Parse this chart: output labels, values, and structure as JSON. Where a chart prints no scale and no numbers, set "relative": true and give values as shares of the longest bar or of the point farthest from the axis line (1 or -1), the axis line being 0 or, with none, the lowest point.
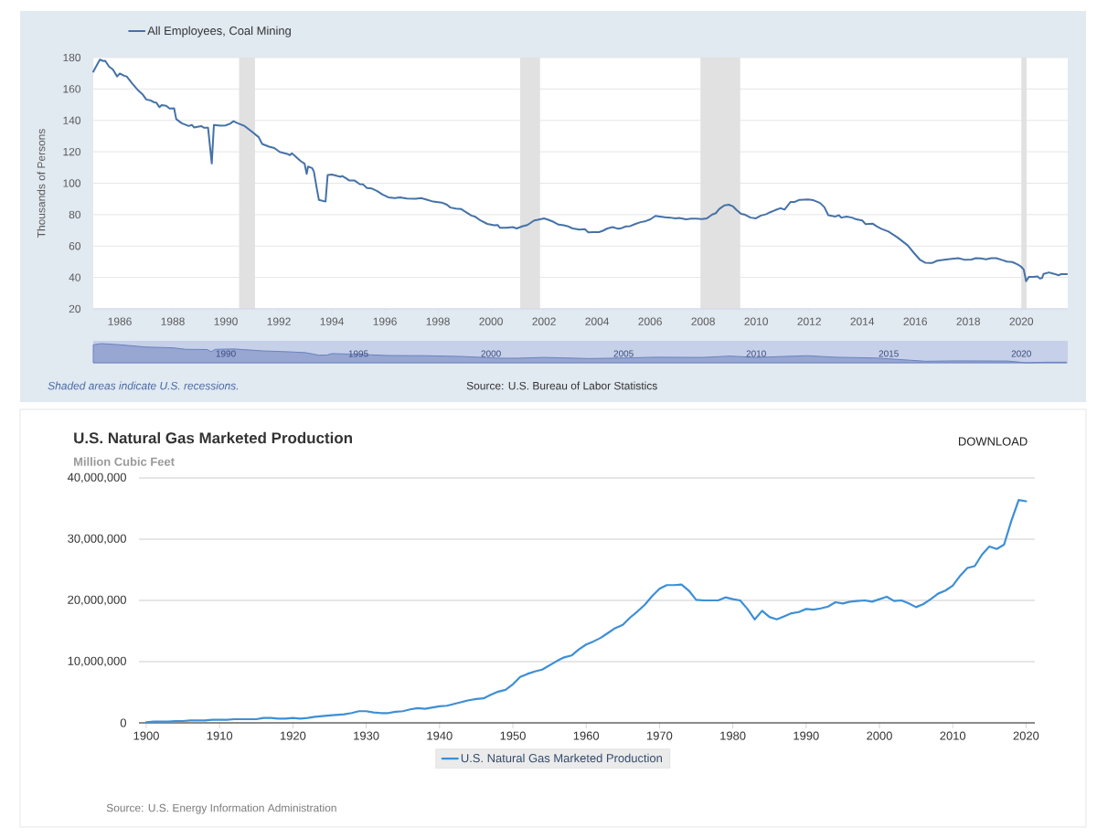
{
  "chart_data": [
    {
      "type": "line",
      "ylabel": "Thousands of Persons",
      "x": [
        1985.0,
        1985.25,
        1985.38,
        1985.45,
        1985.6,
        1985.74,
        1985.9,
        1986.0,
        1986.17,
        1986.26,
        1986.47,
        1986.7,
        1986.87,
        1987.0,
        1987.18,
        1987.29,
        1987.38,
        1987.5,
        1987.58,
        1987.75,
        1987.88,
        1988.05,
        1988.13,
        1988.34,
        1988.6,
        1988.72,
        1988.8,
        1989.07,
        1989.18,
        1989.33,
        1989.47,
        1989.55,
        1989.71,
        1989.82,
        1989.99,
        1990.16,
        1990.29,
        1990.45,
        1990.71,
        1990.97,
        1991.24,
        1991.37,
        1991.63,
        1991.83,
        1992.03,
        1992.29,
        1992.42,
        1992.49,
        1992.62,
        1992.82,
        1992.97,
        1993.05,
        1993.1,
        1993.25,
        1993.32,
        1993.41,
        1993.51,
        1993.76,
        1993.84,
        1994.0,
        1994.2,
        1994.33,
        1994.39,
        1994.55,
        1994.66,
        1994.86,
        1995.05,
        1995.18,
        1995.32,
        1995.51,
        1995.71,
        1995.91,
        1996.13,
        1996.37,
        1996.57,
        1996.83,
        1997.16,
        1997.36,
        1997.55,
        1997.82,
        1998.14,
        1998.34,
        1998.47,
        1998.67,
        1998.87,
        1999.07,
        1999.26,
        1999.39,
        1999.6,
        1999.86,
        2000.12,
        2000.25,
        2000.34,
        2000.58,
        2000.82,
        2000.97,
        2001.17,
        2001.37,
        2001.63,
        2001.76,
        2002.0,
        2002.16,
        2002.36,
        2002.55,
        2002.74,
        2002.88,
        2003.08,
        2003.34,
        2003.54,
        2003.67,
        2003.87,
        2004.07,
        2004.2,
        2004.39,
        2004.59,
        2004.79,
        2004.92,
        2005.09,
        2005.25,
        2005.45,
        2005.64,
        2005.84,
        2006.01,
        2006.2,
        2006.37,
        2006.57,
        2006.76,
        2006.96,
        2007.09,
        2007.36,
        2007.55,
        2007.75,
        2007.95,
        2008.14,
        2008.34,
        2008.47,
        2008.61,
        2008.8,
        2008.97,
        2009.13,
        2009.26,
        2009.43,
        2009.59,
        2009.79,
        2009.99,
        2010.18,
        2010.38,
        2010.51,
        2010.71,
        2010.91,
        2011.07,
        2011.3,
        2011.46,
        2011.63,
        2011.96,
        2012.16,
        2012.41,
        2012.57,
        2012.72,
        2012.99,
        2013.12,
        2013.21,
        2013.41,
        2013.61,
        2013.74,
        2014.0,
        2014.13,
        2014.39,
        2014.53,
        2014.72,
        2014.99,
        2015.32,
        2015.71,
        2015.97,
        2016.17,
        2016.37,
        2016.63,
        2016.83,
        2017.22,
        2017.62,
        2017.88,
        2018.12,
        2018.28,
        2018.47,
        2018.67,
        2018.86,
        2019.05,
        2019.26,
        2019.46,
        2019.66,
        2019.86,
        2019.99,
        2020.09,
        2020.18,
        2020.28,
        2020.45,
        2020.61,
        2020.7,
        2020.78,
        2020.84,
        2021.04,
        2021.24,
        2021.41,
        2021.5,
        2021.72
      ],
      "series": [
        {
          "name": "All Employees, Coal Mining",
          "color": "#4572a7",
          "values": [
            171,
            178.7,
            177.8,
            178,
            174.2,
            172.4,
            168,
            169.8,
            168.4,
            168,
            163.5,
            159,
            156.4,
            153.3,
            152.6,
            151.5,
            151.3,
            148.4,
            149.7,
            149.3,
            147.5,
            147.7,
            140.8,
            138.2,
            136.4,
            137.1,
            135.5,
            136.4,
            135.3,
            135.3,
            112.6,
            137.1,
            136.8,
            136.6,
            136.8,
            137.9,
            139.5,
            138.2,
            136.4,
            133,
            129.3,
            125,
            123.3,
            122.4,
            119.9,
            118.8,
            117.9,
            119,
            117.2,
            114.1,
            112.4,
            105.9,
            110.6,
            109.7,
            107.5,
            98.6,
            89.4,
            88.3,
            105.2,
            105.5,
            104.6,
            104.1,
            104.6,
            103,
            101.7,
            101.7,
            99.4,
            99.2,
            97,
            96.6,
            95,
            92.8,
            91,
            90.5,
            91,
            90.3,
            90.1,
            90.5,
            89.7,
            88.3,
            87.7,
            86.3,
            84.5,
            83.9,
            83.6,
            81.4,
            79.4,
            78.8,
            76.3,
            74.1,
            73.2,
            73.4,
            71.6,
            71.6,
            72.1,
            71.2,
            72.5,
            73.4,
            76.3,
            76.7,
            77.6,
            76.7,
            75.4,
            73.6,
            73.2,
            72.7,
            71.2,
            70.5,
            70.7,
            68.7,
            68.9,
            68.9,
            69.6,
            71.2,
            72.1,
            71,
            71.4,
            72.5,
            72.7,
            74.1,
            75.2,
            75.9,
            77,
            79.2,
            78.8,
            78.3,
            78.1,
            77.6,
            77.9,
            77,
            77.4,
            77.4,
            77.2,
            77.6,
            80.1,
            80.8,
            83.6,
            85.9,
            86.3,
            85.2,
            83,
            80.5,
            79.9,
            78.1,
            77.6,
            79.4,
            80.3,
            81.4,
            82.8,
            84.1,
            83.2,
            88.1,
            88.1,
            89.4,
            89.7,
            89.2,
            87.4,
            84.8,
            79.6,
            78.8,
            79.6,
            78.1,
            78.8,
            78.1,
            77.2,
            76.3,
            73.9,
            74.3,
            72.7,
            71,
            69.2,
            65.6,
            60.5,
            55.2,
            51.4,
            49.4,
            49.2,
            50.7,
            51.6,
            52.3,
            51.2,
            51.4,
            52.3,
            52.1,
            51.6,
            52.3,
            52.3,
            51.2,
            50.1,
            49.8,
            48.3,
            46.9,
            45.1,
            37.6,
            40.3,
            40.3,
            40.7,
            39.4,
            39.6,
            42.3,
            43.2,
            42.3,
            41.4,
            42.1,
            42.1
          ]
        }
      ],
      "xlim": [
        1985,
        2021.75
      ],
      "ylim": [
        20,
        180
      ],
      "xticks": [
        1986,
        1988,
        1990,
        1992,
        1994,
        1996,
        1998,
        2000,
        2002,
        2004,
        2006,
        2008,
        2010,
        2012,
        2014,
        2016,
        2018,
        2020
      ],
      "yticks": [
        20,
        40,
        60,
        80,
        100,
        120,
        140,
        160,
        180
      ],
      "grid": "y",
      "legend": "top left",
      "bands": [
        {
          "axis": "x",
          "from": 1990.5,
          "to": 1991.1,
          "color": "#e1e1e1"
        },
        {
          "axis": "x",
          "from": 2001.1,
          "to": 2001.85,
          "color": "#e1e1e1"
        },
        {
          "axis": "x",
          "from": 2007.9,
          "to": 2009.4,
          "color": "#e1e1e1"
        },
        {
          "axis": "x",
          "from": 2020.0,
          "to": 2020.2,
          "color": "#e1e1e1"
        }
      ],
      "annotations": [
        "Shaded areas indicate U.S. recessions.",
        "Source: U.S. Bureau of Labor Statistics"
      ]
    },
    {
      "type": "area",
      "relative": true,
      "x": [
        1985.0,
        1985.3,
        1986.0,
        1987.0,
        1988.0,
        1988.5,
        1989.3,
        1989.45,
        1989.6,
        1990.3,
        1991.4,
        1992.4,
        1993.0,
        1993.5,
        1993.8,
        1994.0,
        1995.0,
        1996.1,
        1997.5,
        1998.9,
        2000.3,
        2001.0,
        2002.0,
        2003.7,
        2005.0,
        2006.2,
        2008.0,
        2009.0,
        2010.0,
        2011.9,
        2013.0,
        2014.5,
        2016.4,
        2017.6,
        2019.5,
        2020.2,
        2020.9,
        2021.7
      ],
      "series": [
        {
          "color": "#6a82bf",
          "values": [
            0.94,
            1,
            0.94,
            0.82,
            0.78,
            0.7,
            0.69,
            0.58,
            0.7,
            0.72,
            0.62,
            0.57,
            0.53,
            0.4,
            0.4,
            0.48,
            0.44,
            0.38,
            0.37,
            0.33,
            0.24,
            0.24,
            0.28,
            0.22,
            0.25,
            0.29,
            0.28,
            0.35,
            0.28,
            0.37,
            0.29,
            0.25,
            0.08,
            0.1,
            0.09,
            0,
            0.03,
            0.03
          ]
        }
      ],
      "xlim": [
        1985,
        2021.75
      ],
      "xticks": [
        1990,
        1995,
        2000,
        2005,
        2010,
        2015,
        2020
      ],
      "tick_labels": "x"
    },
    {
      "type": "line",
      "title": "U.S. Natural Gas Marketed Production",
      "ylabel": "Million Cubic Feet",
      "x": [
        1900,
        1901,
        1902,
        1903,
        1904,
        1905,
        1906,
        1907,
        1908,
        1909,
        1910,
        1911,
        1912,
        1913,
        1914,
        1915,
        1916,
        1917,
        1918,
        1919,
        1920,
        1921,
        1922,
        1923,
        1924,
        1925,
        1926,
        1927,
        1928,
        1929,
        1930,
        1931,
        1932,
        1933,
        1934,
        1935,
        1936,
        1937,
        1938,
        1939,
        1940,
        1941,
        1942,
        1943,
        1944,
        1945,
        1946,
        1947,
        1948,
        1949,
        1950,
        1951,
        1952,
        1953,
        1954,
        1955,
        1956,
        1957,
        1958,
        1959,
        1960,
        1961,
        1962,
        1963,
        1964,
        1965,
        1966,
        1967,
        1968,
        1969,
        1970,
        1971,
        1972,
        1973,
        1974,
        1975,
        1976,
        1977,
        1978,
        1979,
        1980,
        1981,
        1982,
        1983,
        1984,
        1985,
        1986,
        1987,
        1988,
        1989,
        1990,
        1991,
        1992,
        1993,
        1994,
        1995,
        1996,
        1997,
        1998,
        1999,
        2000,
        2001,
        2002,
        2003,
        2004,
        2005,
        2006,
        2007,
        2008,
        2009,
        2010,
        2011,
        2012,
        2013,
        2014,
        2015,
        2016,
        2017,
        2018,
        2019,
        2020
      ],
      "series": [
        {
          "name": "U.S. Natural Gas Marketed Production",
          "color": "#3d8fd6",
          "values": [
            100000,
            200000,
            200000,
            200000,
            300000,
            300000,
            400000,
            400000,
            400000,
            500000,
            500000,
            500000,
            600000,
            600000,
            600000,
            600000,
            800000,
            800000,
            700000,
            700000,
            800000,
            700000,
            800000,
            1000000,
            1100000,
            1200000,
            1300000,
            1400000,
            1600000,
            1900000,
            1900000,
            1700000,
            1600000,
            1600000,
            1800000,
            1900000,
            2200000,
            2400000,
            2300000,
            2500000,
            2700000,
            2800000,
            3100000,
            3400000,
            3700000,
            3900000,
            4000000,
            4600000,
            5100000,
            5400000,
            6300000,
            7500000,
            8000000,
            8400000,
            8700000,
            9400000,
            10100000,
            10700000,
            11000000,
            12000000,
            12800000,
            13300000,
            13900000,
            14700000,
            15500000,
            16000000,
            17200000,
            18200000,
            19300000,
            20700000,
            21900000,
            22500000,
            22500000,
            22600000,
            21600000,
            20100000,
            20000000,
            20000000,
            20000000,
            20500000,
            20200000,
            20000000,
            18600000,
            16900000,
            18300000,
            17300000,
            16900000,
            17400000,
            17900000,
            18100000,
            18600000,
            18500000,
            18700000,
            19000000,
            19700000,
            19500000,
            19800000,
            19900000,
            20000000,
            19800000,
            20200000,
            20600000,
            19900000,
            20000000,
            19500000,
            18900000,
            19400000,
            20200000,
            21100000,
            21600000,
            22400000,
            24000000,
            25300000,
            25600000,
            27500000,
            28800000,
            28400000,
            29100000,
            33000000,
            36400000,
            36200000
          ]
        }
      ],
      "xlim": [
        1899,
        2021.2
      ],
      "ylim": [
        0,
        40000000
      ],
      "xticks": [
        1900,
        1910,
        1920,
        1930,
        1940,
        1950,
        1960,
        1970,
        1980,
        1990,
        2000,
        2010,
        2020
      ],
      "yticks": [
        0,
        {
          "value": 10000000,
          "label": "10,000,000"
        },
        {
          "value": 20000000,
          "label": "20,000,000"
        },
        {
          "value": 30000000,
          "label": "30,000,000"
        },
        {
          "value": 40000000,
          "label": "40,000,000"
        }
      ],
      "grid": "y",
      "legend": "bottom",
      "annotations": [
        "DOWNLOAD",
        "Source: U.S. Energy Information Administration"
      ]
    }
  ]
}
